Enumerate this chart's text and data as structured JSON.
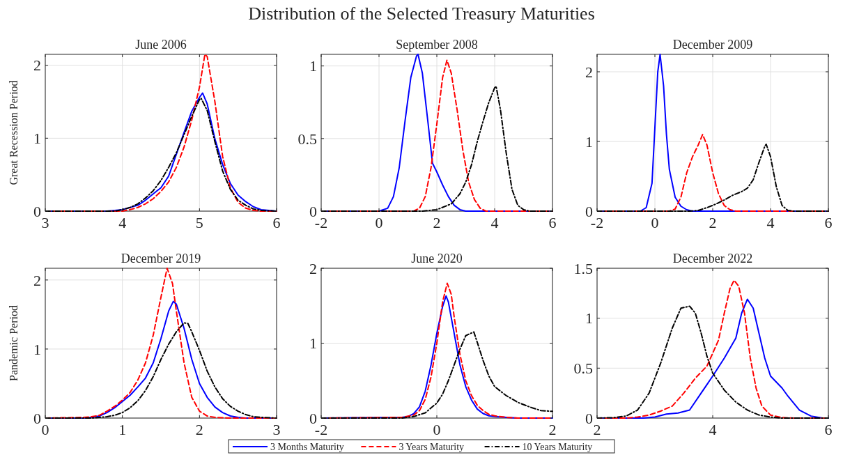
{
  "chart_data": [
    {
      "type": "line",
      "title": "June 2006",
      "ylabel": "Great Recession Period",
      "annotations": [
        "Distribution of the Selected Treasury Maturities"
      ],
      "xlim": [
        3,
        6
      ],
      "xticks": [
        3,
        4,
        5,
        6
      ],
      "ylim": [
        0,
        2.15
      ],
      "yticks": [
        0,
        1,
        2
      ],
      "grid": true,
      "series": [
        {
          "color": "#0000ff",
          "line_style": "solid",
          "x": [
            3,
            3.8,
            4,
            4.2,
            4.3,
            4.45,
            4.5,
            4.6,
            4.7,
            4.8,
            4.9,
            5,
            5.04,
            5.1,
            5.2,
            5.3,
            5.4,
            5.5,
            5.6,
            5.7,
            5.8,
            6
          ],
          "values": [
            0,
            0,
            0.02,
            0.08,
            0.15,
            0.28,
            0.32,
            0.48,
            0.78,
            1.08,
            1.37,
            1.56,
            1.62,
            1.47,
            0.99,
            0.64,
            0.38,
            0.22,
            0.13,
            0.06,
            0.02,
            0
          ]
        },
        {
          "color": "#ff0000",
          "line_style": "dashed",
          "x": [
            3,
            4,
            4.1,
            4.2,
            4.3,
            4.4,
            4.5,
            4.6,
            4.7,
            4.8,
            4.9,
            5,
            5.07,
            5.1,
            5.2,
            5.3,
            5.4,
            5.5,
            5.6,
            5.7,
            5.8,
            6
          ],
          "values": [
            0,
            0,
            0.02,
            0.05,
            0.1,
            0.17,
            0.27,
            0.4,
            0.6,
            0.88,
            1.25,
            1.7,
            2.15,
            2.12,
            1.5,
            0.75,
            0.32,
            0.12,
            0.04,
            0.01,
            0,
            0
          ]
        },
        {
          "color": "#000000",
          "line_style": "dashdot",
          "x": [
            3,
            3.9,
            4,
            4.1,
            4.2,
            4.3,
            4.4,
            4.5,
            4.6,
            4.7,
            4.8,
            4.9,
            5,
            5.02,
            5.1,
            5.2,
            5.3,
            5.4,
            5.5,
            5.6,
            5.7,
            5.8,
            6
          ],
          "values": [
            0,
            0,
            0.02,
            0.05,
            0.1,
            0.18,
            0.28,
            0.42,
            0.6,
            0.8,
            1.05,
            1.3,
            1.53,
            1.55,
            1.38,
            0.95,
            0.55,
            0.3,
            0.15,
            0.08,
            0.03,
            0.01,
            0
          ]
        }
      ]
    },
    {
      "type": "line",
      "title": "September 2008",
      "xlim": [
        -2,
        6
      ],
      "xticks": [
        -2,
        0,
        2,
        4,
        6
      ],
      "ylim": [
        0,
        1.08
      ],
      "yticks": [
        0,
        0.5,
        1
      ],
      "grid": true,
      "series": [
        {
          "color": "#0000ff",
          "line_style": "solid",
          "x": [
            -2,
            0,
            0.3,
            0.5,
            0.7,
            0.9,
            1.1,
            1.3,
            1.35,
            1.5,
            1.7,
            1.85,
            2,
            2.2,
            2.4,
            2.6,
            2.8,
            3,
            6
          ],
          "values": [
            0,
            0,
            0.02,
            0.1,
            0.3,
            0.62,
            0.92,
            1.07,
            1.08,
            0.95,
            0.6,
            0.33,
            0.27,
            0.18,
            0.1,
            0.04,
            0.01,
            0,
            0
          ]
        },
        {
          "color": "#ff0000",
          "line_style": "dashed",
          "x": [
            -2,
            1.2,
            1.4,
            1.6,
            1.8,
            2,
            2.2,
            2.35,
            2.5,
            2.7,
            2.9,
            3.1,
            3.3,
            3.5,
            3.7,
            6
          ],
          "values": [
            0,
            0,
            0.02,
            0.1,
            0.3,
            0.6,
            0.92,
            1.04,
            0.95,
            0.7,
            0.42,
            0.2,
            0.08,
            0.02,
            0,
            0
          ]
        },
        {
          "color": "#000000",
          "line_style": "dashdot",
          "x": [
            -2,
            1.5,
            2,
            2.5,
            2.8,
            3,
            3.2,
            3.4,
            3.6,
            3.8,
            4,
            4.05,
            4.2,
            4.4,
            4.6,
            4.8,
            5,
            5.2,
            6
          ],
          "values": [
            0,
            0,
            0.01,
            0.05,
            0.12,
            0.2,
            0.32,
            0.48,
            0.62,
            0.75,
            0.85,
            0.86,
            0.7,
            0.4,
            0.15,
            0.04,
            0.01,
            0,
            0
          ]
        }
      ]
    },
    {
      "type": "line",
      "title": "December 2009",
      "xlim": [
        -2,
        6
      ],
      "xticks": [
        -2,
        0,
        2,
        4,
        6
      ],
      "ylim": [
        0,
        2.25
      ],
      "yticks": [
        0,
        1,
        2
      ],
      "grid": true,
      "series": [
        {
          "color": "#0000ff",
          "line_style": "solid",
          "x": [
            -2,
            -0.5,
            -0.3,
            -0.1,
            0,
            0.1,
            0.18,
            0.3,
            0.4,
            0.5,
            0.7,
            0.9,
            1.1,
            1.3,
            6
          ],
          "values": [
            0,
            0,
            0.05,
            0.4,
            1.2,
            2,
            2.25,
            1.8,
            1.1,
            0.6,
            0.2,
            0.07,
            0.02,
            0,
            0
          ]
        },
        {
          "color": "#ff0000",
          "line_style": "dashed",
          "x": [
            -2,
            0.5,
            0.7,
            0.9,
            1.1,
            1.3,
            1.5,
            1.65,
            1.8,
            2,
            2.2,
            2.4,
            2.6,
            2.8,
            6
          ],
          "values": [
            0,
            0,
            0.03,
            0.2,
            0.55,
            0.78,
            0.95,
            1.1,
            0.95,
            0.55,
            0.25,
            0.08,
            0.02,
            0,
            0
          ]
        },
        {
          "color": "#000000",
          "line_style": "dashdot",
          "x": [
            -2,
            1.2,
            1.5,
            1.8,
            2.1,
            2.4,
            2.7,
            3,
            3.2,
            3.4,
            3.6,
            3.8,
            3.85,
            4,
            4.2,
            4.4,
            4.6,
            4.8,
            6
          ],
          "values": [
            0,
            0,
            0.01,
            0.05,
            0.1,
            0.16,
            0.23,
            0.28,
            0.33,
            0.45,
            0.7,
            0.93,
            0.96,
            0.78,
            0.35,
            0.08,
            0.01,
            0,
            0
          ]
        }
      ]
    },
    {
      "type": "line",
      "title": "December 2019",
      "ylabel": "Pandemic Period",
      "xlim": [
        0,
        3
      ],
      "xticks": [
        0,
        1,
        2,
        3
      ],
      "ylim": [
        0,
        2.17
      ],
      "yticks": [
        0,
        1,
        2
      ],
      "grid": true,
      "series": [
        {
          "color": "#0000ff",
          "line_style": "solid",
          "x": [
            0,
            0.5,
            0.6,
            0.7,
            0.8,
            0.9,
            1,
            1.1,
            1.2,
            1.3,
            1.4,
            1.5,
            1.6,
            1.66,
            1.7,
            1.8,
            1.9,
            2,
            2.1,
            2.2,
            2.3,
            2.4,
            2.5,
            2.6,
            3
          ],
          "values": [
            0,
            0,
            0.01,
            0.03,
            0.08,
            0.15,
            0.24,
            0.33,
            0.45,
            0.58,
            0.8,
            1.15,
            1.55,
            1.69,
            1.65,
            1.3,
            0.85,
            0.5,
            0.3,
            0.16,
            0.08,
            0.03,
            0.01,
            0,
            0
          ]
        },
        {
          "color": "#ff0000",
          "line_style": "dashed",
          "x": [
            0,
            0.5,
            0.6,
            0.7,
            0.8,
            0.9,
            1,
            1.1,
            1.2,
            1.3,
            1.4,
            1.5,
            1.58,
            1.65,
            1.7,
            1.8,
            1.9,
            2,
            2.1,
            2.2,
            2.4,
            3
          ],
          "values": [
            0,
            0.01,
            0.02,
            0.04,
            0.1,
            0.17,
            0.26,
            0.37,
            0.55,
            0.8,
            1.2,
            1.75,
            2.17,
            1.95,
            1.55,
            0.8,
            0.3,
            0.1,
            0.03,
            0.01,
            0,
            0
          ]
        },
        {
          "color": "#000000",
          "line_style": "dashdot",
          "x": [
            0,
            0.6,
            0.8,
            0.9,
            1,
            1.1,
            1.2,
            1.3,
            1.4,
            1.5,
            1.6,
            1.7,
            1.8,
            1.85,
            1.9,
            2,
            2.1,
            2.2,
            2.3,
            2.4,
            2.5,
            2.6,
            2.7,
            2.8,
            3
          ],
          "values": [
            0,
            0,
            0.02,
            0.04,
            0.08,
            0.15,
            0.25,
            0.4,
            0.6,
            0.85,
            1.07,
            1.25,
            1.38,
            1.37,
            1.25,
            0.98,
            0.68,
            0.45,
            0.28,
            0.17,
            0.1,
            0.05,
            0.02,
            0.01,
            0
          ]
        }
      ]
    },
    {
      "type": "line",
      "title": "June 2020",
      "xlim": [
        -2,
        2
      ],
      "xticks": [
        -2,
        0,
        2
      ],
      "ylim": [
        0,
        2
      ],
      "yticks": [
        0,
        1,
        2
      ],
      "grid": true,
      "legend": "bottom",
      "series": [
        {
          "name": "3 Months Maturity",
          "color": "#0000ff",
          "line_style": "solid",
          "x": [
            -2,
            -0.6,
            -0.5,
            -0.4,
            -0.3,
            -0.2,
            -0.1,
            0,
            0.1,
            0.16,
            0.2,
            0.3,
            0.4,
            0.5,
            0.6,
            0.7,
            0.8,
            0.9,
            1,
            1.2,
            1.4,
            2
          ],
          "values": [
            0,
            0.01,
            0.02,
            0.06,
            0.15,
            0.36,
            0.71,
            1.13,
            1.49,
            1.63,
            1.55,
            1.13,
            0.71,
            0.42,
            0.24,
            0.12,
            0.06,
            0.03,
            0.02,
            0.01,
            0,
            0
          ]
        },
        {
          "name": "3 Years Maturity",
          "color": "#ff0000",
          "line_style": "dashed",
          "x": [
            -2,
            -0.6,
            -0.4,
            -0.3,
            -0.2,
            -0.1,
            0,
            0.1,
            0.18,
            0.25,
            0.3,
            0.4,
            0.5,
            0.6,
            0.7,
            0.8,
            0.9,
            1,
            1.2,
            1.4,
            2
          ],
          "values": [
            0,
            0.01,
            0.04,
            0.1,
            0.25,
            0.55,
            1,
            1.55,
            1.8,
            1.65,
            1.35,
            0.85,
            0.5,
            0.3,
            0.17,
            0.1,
            0.05,
            0.03,
            0.01,
            0,
            0
          ]
        },
        {
          "name": "10 Years Maturity",
          "color": "#000000",
          "line_style": "dashdot",
          "x": [
            -2,
            -0.6,
            -0.4,
            -0.2,
            0,
            0.1,
            0.2,
            0.3,
            0.4,
            0.5,
            0.64,
            0.7,
            0.8,
            0.9,
            1,
            1.2,
            1.4,
            1.6,
            1.8,
            2
          ],
          "values": [
            0,
            0,
            0.02,
            0.07,
            0.2,
            0.32,
            0.5,
            0.71,
            0.92,
            1.1,
            1.15,
            1.01,
            0.77,
            0.56,
            0.42,
            0.3,
            0.21,
            0.15,
            0.1,
            0.09
          ]
        }
      ]
    },
    {
      "type": "line",
      "title": "December 2022",
      "xlim": [
        2,
        6
      ],
      "xticks": [
        2,
        4,
        6
      ],
      "ylim": [
        0,
        1.5
      ],
      "yticks": [
        0,
        0.5,
        1,
        1.5
      ],
      "grid": true,
      "series": [
        {
          "color": "#0000ff",
          "line_style": "solid",
          "x": [
            2,
            2.8,
            3,
            3.2,
            3.4,
            3.6,
            3.8,
            4,
            4.2,
            4.4,
            4.5,
            4.6,
            4.7,
            4.8,
            4.9,
            5,
            5.2,
            5.3,
            5.5,
            5.7,
            5.9,
            6
          ],
          "values": [
            0,
            0,
            0.01,
            0.04,
            0.05,
            0.08,
            0.25,
            0.42,
            0.6,
            0.8,
            1.05,
            1.19,
            1.1,
            0.85,
            0.6,
            0.42,
            0.3,
            0.22,
            0.08,
            0.02,
            0,
            0
          ]
        },
        {
          "color": "#ff0000",
          "line_style": "dashed",
          "x": [
            2,
            2.5,
            2.7,
            2.9,
            3.1,
            3.3,
            3.5,
            3.7,
            3.9,
            4.1,
            4.2,
            4.3,
            4.37,
            4.45,
            4.55,
            4.65,
            4.75,
            4.85,
            5,
            5.2,
            5.4,
            6
          ],
          "values": [
            0,
            0,
            0.01,
            0.03,
            0.07,
            0.12,
            0.25,
            0.4,
            0.52,
            0.78,
            1.05,
            1.3,
            1.38,
            1.32,
            1.05,
            0.6,
            0.3,
            0.12,
            0.03,
            0.005,
            0,
            0
          ]
        },
        {
          "color": "#000000",
          "line_style": "dashdot",
          "x": [
            2,
            2.3,
            2.5,
            2.7,
            2.9,
            3.1,
            3.3,
            3.45,
            3.6,
            3.7,
            3.8,
            3.9,
            4,
            4.2,
            4.4,
            4.6,
            4.8,
            5,
            5.2,
            6
          ],
          "values": [
            0,
            0.005,
            0.02,
            0.08,
            0.25,
            0.55,
            0.9,
            1.1,
            1.12,
            1.05,
            0.85,
            0.62,
            0.45,
            0.28,
            0.16,
            0.08,
            0.03,
            0.01,
            0,
            0
          ]
        }
      ]
    }
  ]
}
